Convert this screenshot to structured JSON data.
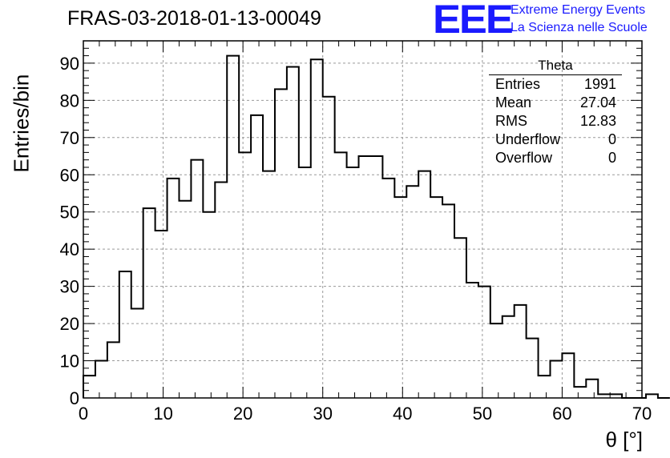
{
  "title": "FRAS-03-2018-01-13-00049",
  "logo": {
    "mark": "EEE",
    "line1": "Extreme Energy Events",
    "line2": "La Scienza nelle Scuole"
  },
  "stats_box": {
    "title": "Theta",
    "rows": [
      {
        "label": "Entries",
        "value": "1991"
      },
      {
        "label": "Mean",
        "value": "27.04"
      },
      {
        "label": "RMS",
        "value": "12.83"
      },
      {
        "label": "Underflow",
        "value": "0"
      },
      {
        "label": "Overflow",
        "value": "0"
      }
    ]
  },
  "chart_data": {
    "type": "bar",
    "style": "step-histogram",
    "xlabel": "θ [°]",
    "ylabel": "Entries/bin",
    "xlim": [
      0,
      70
    ],
    "ylim": [
      0,
      96
    ],
    "xticks": [
      0,
      10,
      20,
      30,
      40,
      50,
      60,
      70
    ],
    "yticks": [
      0,
      10,
      20,
      30,
      40,
      50,
      60,
      70,
      80,
      90
    ],
    "grid": true,
    "bin_width": 1.5,
    "bin_edges_start": 0,
    "values": [
      6,
      10,
      15,
      34,
      24,
      51,
      45,
      59,
      53,
      64,
      50,
      58,
      92,
      66,
      76,
      61,
      83,
      89,
      62,
      91,
      81,
      66,
      62,
      65,
      65,
      59,
      54,
      57,
      61,
      54,
      52,
      43,
      31,
      30,
      20,
      22,
      25,
      16,
      6,
      10,
      12,
      3,
      5,
      1,
      1,
      0,
      0,
      1,
      0
    ]
  }
}
